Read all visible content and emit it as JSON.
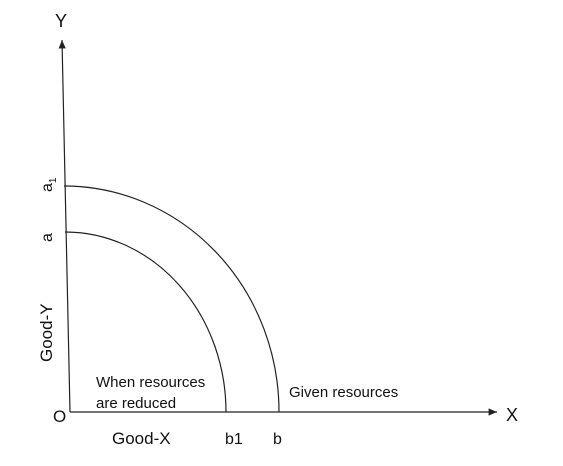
{
  "axes": {
    "y_letter": "Y",
    "x_letter": "X",
    "origin": "O",
    "x_title": "Good-X",
    "y_title": "Good-Y"
  },
  "y_points": [
    {
      "label": "a",
      "subscript": "1"
    },
    {
      "label": "a"
    }
  ],
  "x_points": [
    {
      "label": "b1"
    },
    {
      "label": "b"
    }
  ],
  "annotations": {
    "reduced": [
      "When resources",
      "are reduced"
    ],
    "given": "Given resources"
  }
}
